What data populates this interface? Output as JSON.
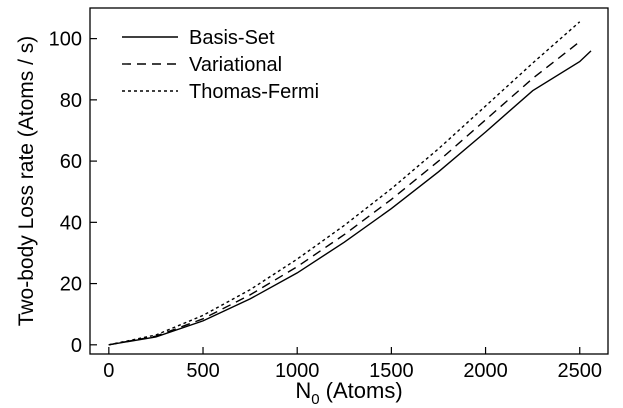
{
  "chart_data": {
    "type": "line",
    "title": "",
    "xlabel": {
      "main": "N",
      "subscript": "0",
      "rest": " (Atoms)"
    },
    "ylabel": "Two-body Loss rate (Atoms / s)",
    "xlim": [
      -100,
      2650
    ],
    "ylim": [
      -3,
      110
    ],
    "xticks": [
      0,
      500,
      1000,
      1500,
      2000,
      2500
    ],
    "yticks": [
      0,
      20,
      40,
      60,
      80,
      100
    ],
    "grid": false,
    "legend_position": "top-left",
    "series": [
      {
        "name": "Basis-Set",
        "dash": "solid",
        "x": [
          0,
          250,
          500,
          750,
          1000,
          1250,
          1500,
          1750,
          2000,
          2250,
          2500,
          2560
        ],
        "y": [
          0,
          2.6,
          7.8,
          15,
          23.5,
          33.5,
          44.5,
          56.5,
          69.5,
          83,
          92.5,
          96
        ]
      },
      {
        "name": "Variational",
        "dash": "dashed",
        "x": [
          0,
          250,
          500,
          750,
          1000,
          1250,
          1500,
          1750,
          2000,
          2250,
          2500
        ],
        "y": [
          0,
          2.8,
          8.5,
          16.3,
          25.5,
          36,
          47.5,
          60,
          73.5,
          87,
          99
        ]
      },
      {
        "name": "Thomas-Fermi",
        "dash": "dotted",
        "x": [
          0,
          250,
          500,
          750,
          1000,
          1250,
          1500,
          1750,
          2000,
          2250,
          2500
        ],
        "y": [
          0,
          3.2,
          9.6,
          18,
          28,
          39,
          51,
          64,
          78,
          92,
          105.5
        ]
      }
    ]
  }
}
